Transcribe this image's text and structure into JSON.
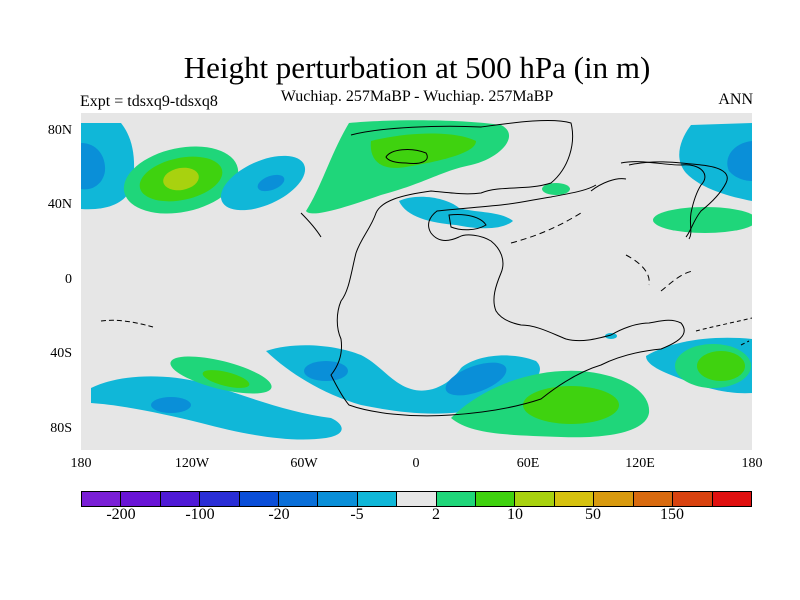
{
  "header": {
    "title": "Height perturbation at 500 hPa (in m)",
    "subtitle": "Wuchiap. 257MaBP - Wuchiap. 257MaBP",
    "left_label": "Expt = tdsxq9-tdsxq8",
    "right_label": "ANN"
  },
  "axes": {
    "lat_ticks": [
      "80N",
      "40N",
      "0",
      "40S",
      "80S"
    ],
    "lon_ticks": [
      "180",
      "120W",
      "60W",
      "0",
      "60E",
      "120E",
      "180"
    ]
  },
  "colorbar": {
    "colors": [
      "#7a1fd6",
      "#6914d6",
      "#4f1ad6",
      "#2a2ed6",
      "#0a4ed8",
      "#0a6fd8",
      "#0a8fd8",
      "#10b7d8",
      "#e6e6e6",
      "#1fd67a",
      "#3fd20f",
      "#a8d20f",
      "#d6c20f",
      "#d89a0f",
      "#d86a0f",
      "#d8420f",
      "#e01010"
    ],
    "labels": [
      "-200",
      "-100",
      "-20",
      "-5",
      "2",
      "10",
      "50",
      "150"
    ]
  },
  "fill_colors": {
    "background": "#e6e6e6",
    "light_blue": "#10b7d8",
    "blue": "#0a8fd8",
    "light_green": "#1fd67a",
    "green": "#3fd20f",
    "yellow_green": "#a8d20f"
  }
}
